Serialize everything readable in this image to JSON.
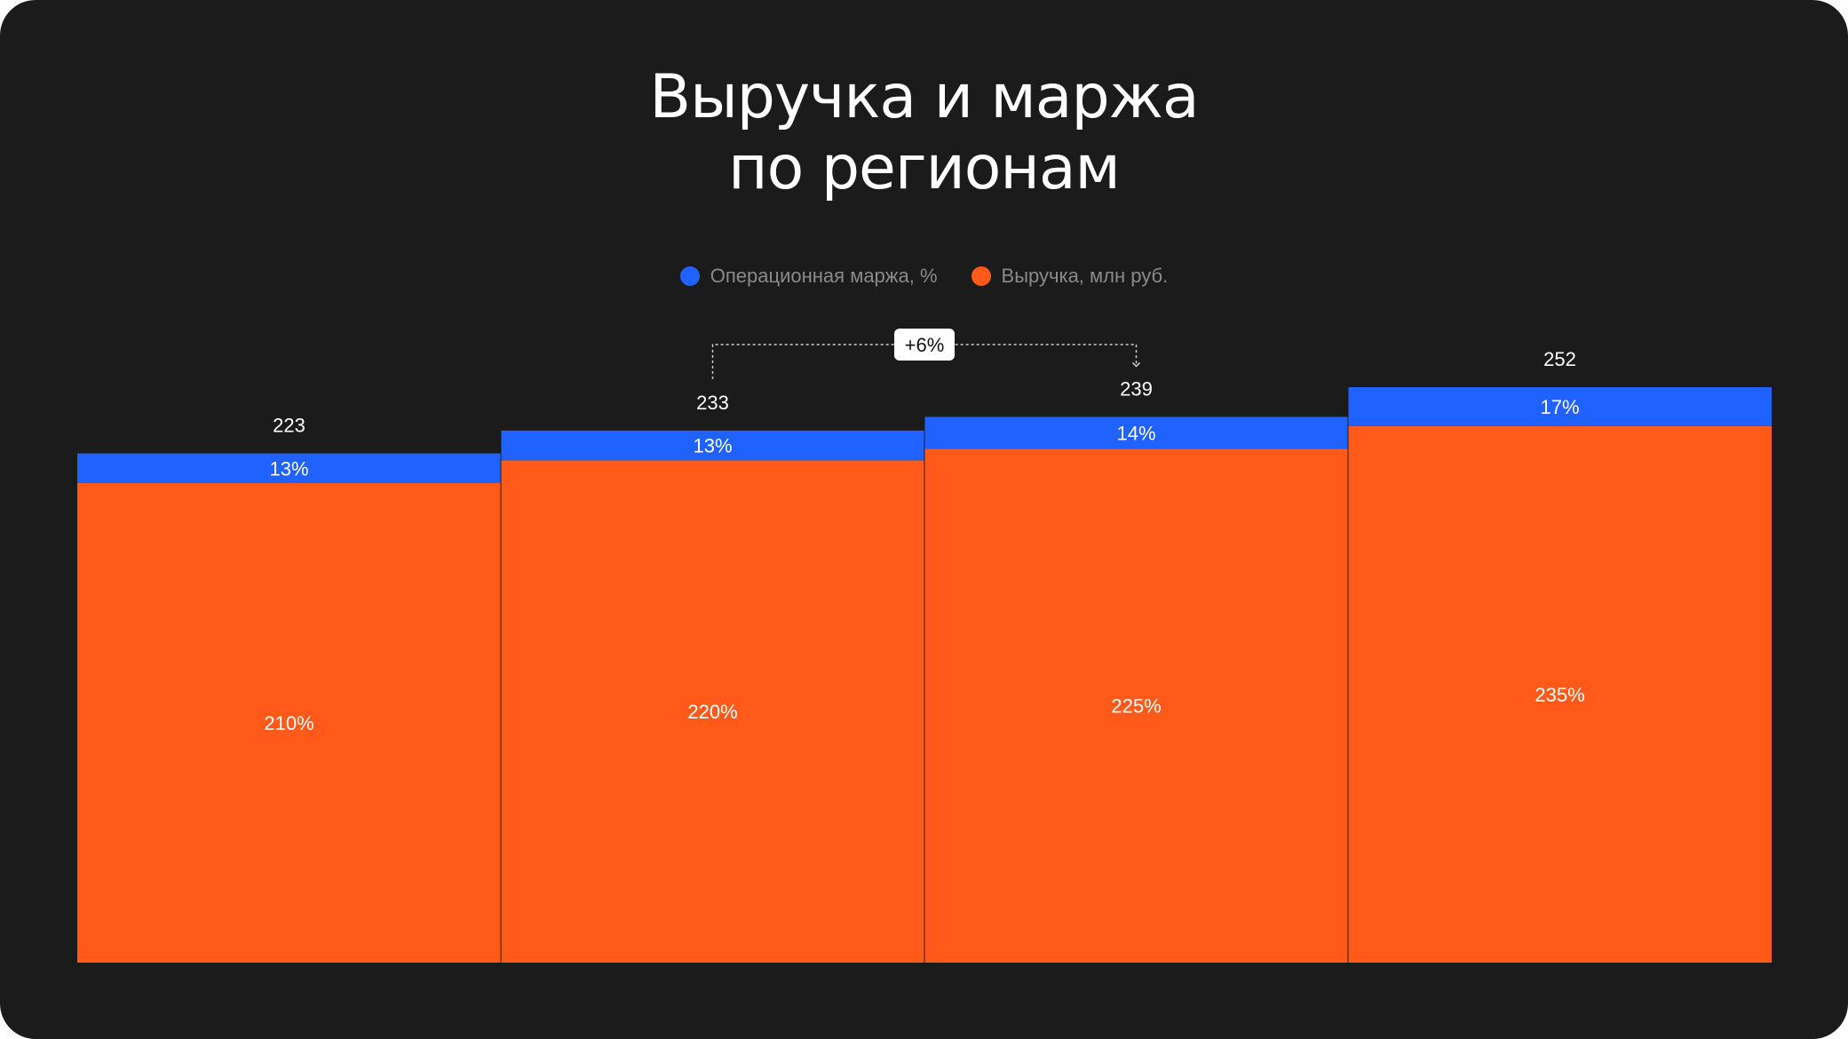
{
  "title_line1": "Выручка и маржа",
  "title_line2": "по регионам",
  "colors": {
    "background": "#1b1b1b",
    "margin": "#1f62ff",
    "revenue": "#ff5a1a"
  },
  "legend": [
    {
      "label": "Операционная маржа,  %",
      "color": "#1f62ff",
      "icon": "blue-dot-icon"
    },
    {
      "label": "Выручка, млн руб.",
      "color": "#ff5a1a",
      "icon": "orange-dot-icon"
    }
  ],
  "chart_data": {
    "type": "bar",
    "stacked": true,
    "categories": [
      "",
      "",
      "",
      ""
    ],
    "totals": [
      223,
      233,
      239,
      252
    ],
    "series": [
      {
        "name": "Выручка, млн руб.",
        "values": [
          210,
          220,
          225,
          235
        ],
        "labels": [
          "210%",
          "220%",
          "225%",
          "235%"
        ]
      },
      {
        "name": "Операционная маржа,  %",
        "values": [
          13,
          13,
          14,
          17
        ],
        "labels": [
          "13%",
          "13%",
          "14%",
          "17%"
        ]
      }
    ],
    "annotation": {
      "text": "+6%",
      "from_index": 1,
      "to_index": 2
    },
    "ylim": [
      0,
      252
    ],
    "grid": false,
    "legend_position": "top-center"
  }
}
